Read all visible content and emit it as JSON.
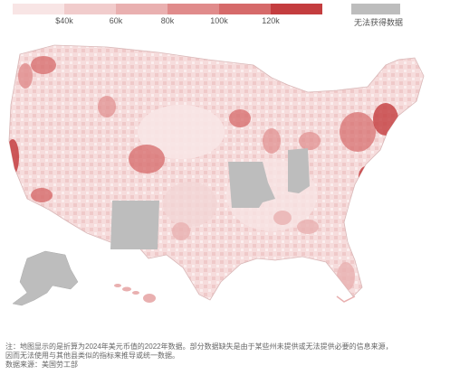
{
  "legend": {
    "colors": [
      "#f8e5e5",
      "#f1cccc",
      "#e9b0b0",
      "#e08b8b",
      "#d66a6a",
      "#c43d3f"
    ],
    "ticks": [
      "$40k",
      "60k",
      "80k",
      "100k",
      "120k"
    ],
    "nodata_label": "无法获得数据",
    "nodata_color": "#bdbdbd"
  },
  "map": {
    "type": "choropleth",
    "region": "United States counties",
    "measure": "household income (2022 data in 2024 dollars)",
    "scale_min": 40000,
    "scale_max": 120000,
    "gray_regions": [
      "New Mexico",
      "Missouri",
      "Indiana",
      "Alaska"
    ]
  },
  "note": {
    "line1": "注：地图显示的是折算为2024年美元币值的2022年数据。部分数据缺失是由于某些州未提供或无法提供必要的信息来源，",
    "line2": "因而无法使用与其他县类似的指标来推导或统一数据。",
    "source": "数据来源：美国劳工部"
  }
}
